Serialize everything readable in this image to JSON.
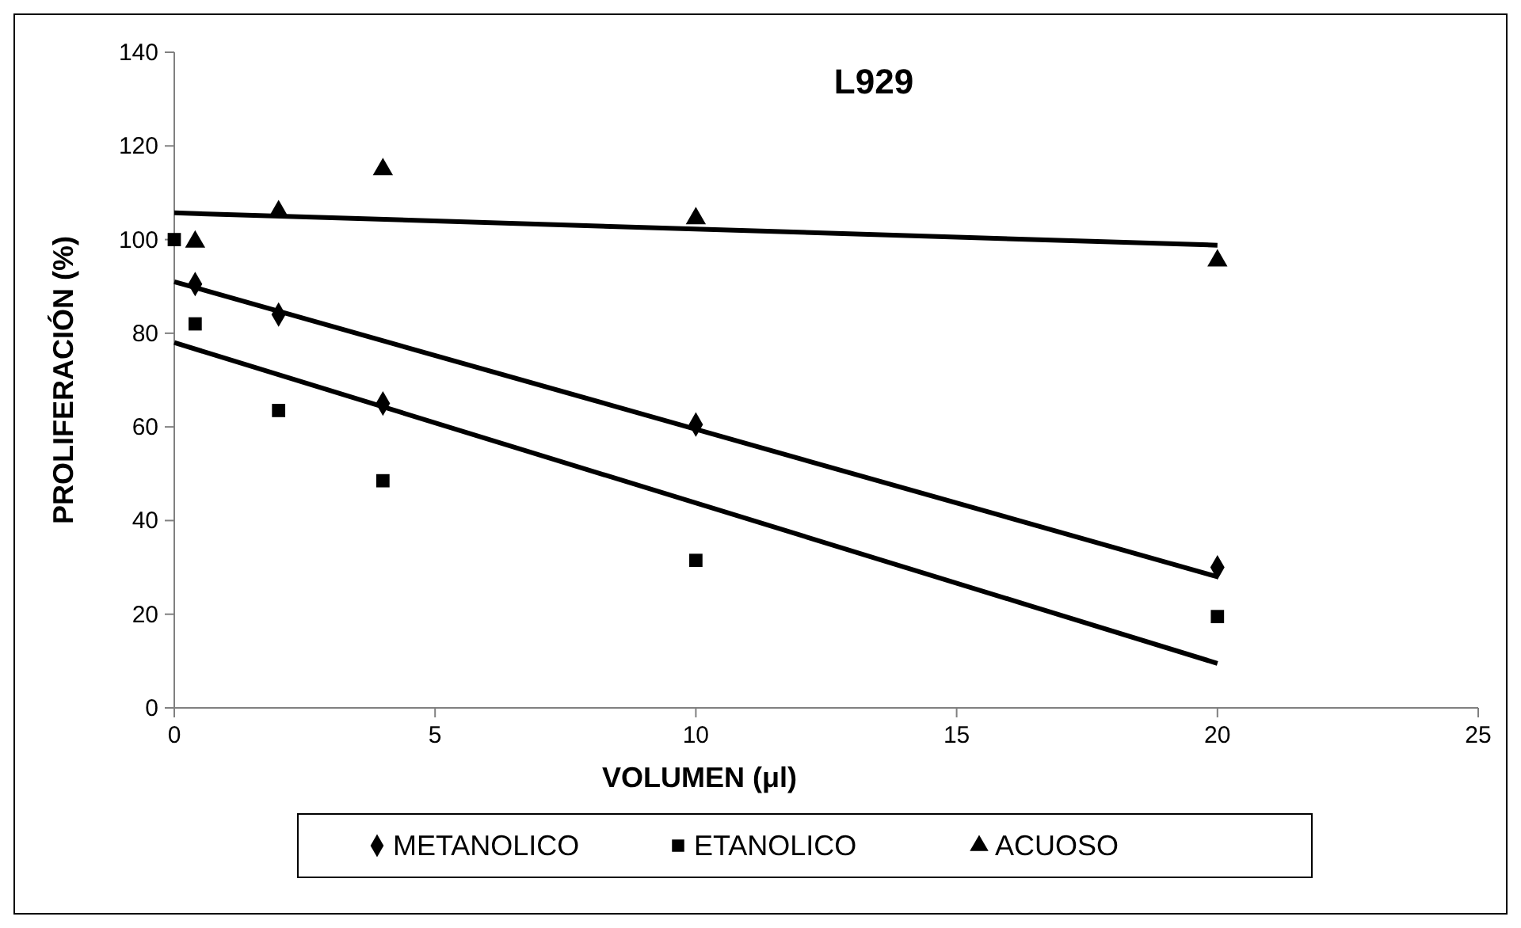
{
  "chart_data": {
    "type": "scatter",
    "title": "L929",
    "xlabel": "VOLUMEN (μl)",
    "ylabel": "PROLIFERACIÓN (%)",
    "xlim": [
      0,
      25
    ],
    "xticks": [
      0,
      5,
      10,
      15,
      20,
      25
    ],
    "ylim": [
      0,
      140
    ],
    "yticks": [
      0,
      20,
      40,
      60,
      80,
      100,
      120,
      140
    ],
    "grid": false,
    "legend": "bottom",
    "series": [
      {
        "name": "METANOLICO",
        "color": "#000000",
        "marker": "diamond",
        "x": [
          0.4,
          2,
          4,
          10,
          20
        ],
        "values": [
          90.5,
          84,
          65,
          60.5,
          30
        ]
      },
      {
        "name": "ETANOLICO",
        "color": "#000000",
        "marker": "square",
        "x": [
          0,
          0.4,
          2,
          4,
          10,
          20
        ],
        "values": [
          100,
          82,
          63.5,
          48.5,
          31.5,
          19.5
        ]
      },
      {
        "name": "ACUOSO",
        "color": "#000000",
        "marker": "triangle",
        "x": [
          0.4,
          2,
          4,
          10,
          20
        ],
        "values": [
          99.5,
          106,
          115,
          104.5,
          95.5
        ]
      },
      {
        "type": "line",
        "color": "#000000",
        "line_style": "solid",
        "x": [
          0,
          20
        ],
        "values": [
          91,
          28
        ]
      },
      {
        "type": "line",
        "color": "#000000",
        "line_style": "solid",
        "x": [
          0,
          20
        ],
        "values": [
          78,
          9.5
        ]
      },
      {
        "type": "line",
        "color": "#000000",
        "line_style": "solid",
        "x": [
          0,
          20
        ],
        "values": [
          105.7,
          98.8
        ]
      }
    ]
  }
}
